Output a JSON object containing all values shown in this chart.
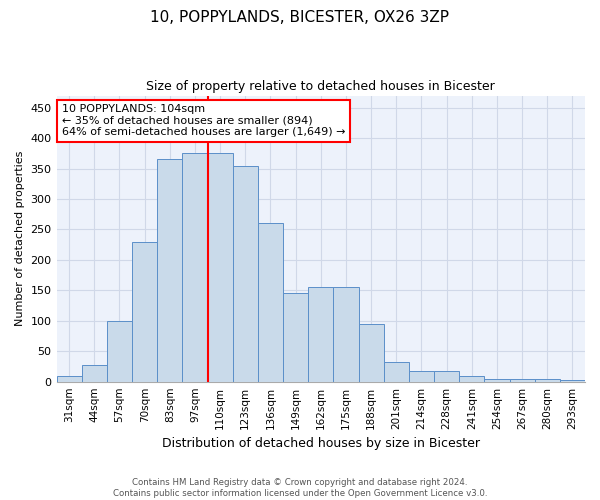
{
  "title": "10, POPPYLANDS, BICESTER, OX26 3ZP",
  "subtitle": "Size of property relative to detached houses in Bicester",
  "xlabel": "Distribution of detached houses by size in Bicester",
  "ylabel": "Number of detached properties",
  "categories": [
    "31sqm",
    "44sqm",
    "57sqm",
    "70sqm",
    "83sqm",
    "97sqm",
    "110sqm",
    "123sqm",
    "136sqm",
    "149sqm",
    "162sqm",
    "175sqm",
    "188sqm",
    "201sqm",
    "214sqm",
    "228sqm",
    "241sqm",
    "254sqm",
    "267sqm",
    "280sqm",
    "293sqm"
  ],
  "values": [
    10,
    27,
    100,
    230,
    365,
    375,
    375,
    355,
    260,
    145,
    155,
    155,
    95,
    33,
    18,
    18,
    10,
    5,
    4,
    4,
    3
  ],
  "bar_color": "#c9daea",
  "bar_edge_color": "#5b8fc9",
  "vline_color": "red",
  "vline_x_index": 5,
  "ylim": [
    0,
    470
  ],
  "yticks": [
    0,
    50,
    100,
    150,
    200,
    250,
    300,
    350,
    400,
    450
  ],
  "annotation_label": "10 POPPYLANDS: 104sqm",
  "annotation_line1": "← 35% of detached houses are smaller (894)",
  "annotation_line2": "64% of semi-detached houses are larger (1,649) →",
  "footer1": "Contains HM Land Registry data © Crown copyright and database right 2024.",
  "footer2": "Contains public sector information licensed under the Open Government Licence v3.0.",
  "bg_color": "#edf2fb",
  "grid_color": "#d0d8e8",
  "title_fontsize": 11,
  "subtitle_fontsize": 9,
  "xlabel_fontsize": 9,
  "ylabel_fontsize": 8,
  "tick_fontsize": 8,
  "xtick_fontsize": 7.5,
  "annot_fontsize": 8
}
